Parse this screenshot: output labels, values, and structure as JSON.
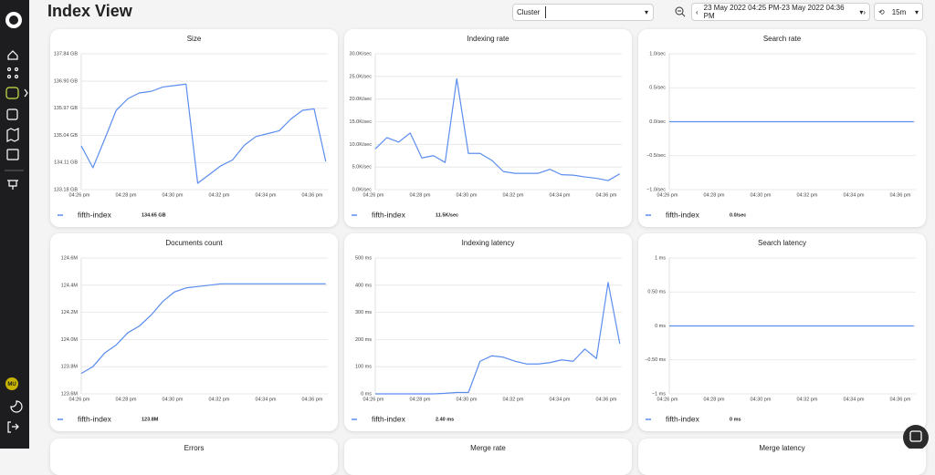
{
  "header": {
    "title": "Index View",
    "cluster_label": "Cluster",
    "time_range": "23 May 2022 04:25 PM-23 May 2022 04:36 PM",
    "refresh": "15m"
  },
  "sidebar": {
    "user": "MU"
  },
  "chart_data": [
    {
      "type": "line",
      "title": "Size",
      "categories": [
        "04:26 pm",
        null,
        null,
        null,
        "04:28 pm",
        null,
        null,
        null,
        "04:30 pm",
        null,
        null,
        null,
        "04:32 pm",
        null,
        null,
        null,
        "04:34 pm",
        null,
        null,
        null,
        "04:36 pm",
        null
      ],
      "series": [
        {
          "name": "fifth-index",
          "color": "#5b8def",
          "legend_value": "134.65 GB",
          "values": [
            134.68,
            133.93,
            134.9,
            135.9,
            136.3,
            136.5,
            136.55,
            136.7,
            136.75,
            136.8,
            133.4,
            133.7,
            134.0,
            134.2,
            134.7,
            135.0,
            135.1,
            135.2,
            135.6,
            135.9,
            135.95,
            134.15
          ]
        }
      ],
      "ylim": [
        133.18,
        137.84
      ],
      "yticks": [
        {
          "value": 133.18,
          "label": "133.18 GB"
        },
        {
          "value": 134.11,
          "label": "134.11 GB"
        },
        {
          "value": 135.04,
          "label": "135.04 GB"
        },
        {
          "value": 135.97,
          "label": "135.97 GB"
        },
        {
          "value": 136.9,
          "label": "136.90 GB"
        },
        {
          "value": 137.84,
          "label": "137.84 GB"
        }
      ],
      "grid": true
    },
    {
      "type": "line",
      "title": "Indexing rate",
      "categories": [
        "04:26 pm",
        null,
        null,
        null,
        "04:28 pm",
        null,
        null,
        null,
        "04:30 pm",
        null,
        null,
        null,
        "04:32 pm",
        null,
        null,
        null,
        "04:34 pm",
        null,
        null,
        null,
        "04:36 pm",
        null
      ],
      "series": [
        {
          "name": "fifth-index",
          "color": "#5b8def",
          "legend_value": "11.5K/sec",
          "values": [
            9,
            11.5,
            10.5,
            12.5,
            7,
            7.5,
            6,
            24.5,
            8,
            8,
            6.5,
            4,
            3.6,
            3.6,
            3.6,
            4.5,
            3.3,
            3.2,
            2.8,
            2.5,
            2.0,
            3.5
          ]
        }
      ],
      "ylim": [
        0,
        30
      ],
      "yticks": [
        {
          "value": 0,
          "label": "0.0K/sec"
        },
        {
          "value": 5,
          "label": "5.0K/sec"
        },
        {
          "value": 10,
          "label": "10.0K/sec"
        },
        {
          "value": 15,
          "label": "15.0K/sec"
        },
        {
          "value": 20,
          "label": "20.0K/sec"
        },
        {
          "value": 25,
          "label": "25.0K/sec"
        },
        {
          "value": 30,
          "label": "30.0K/sec"
        }
      ],
      "grid": true
    },
    {
      "type": "line",
      "title": "Search rate",
      "categories": [
        "04:26 pm",
        null,
        null,
        null,
        "04:28 pm",
        null,
        null,
        null,
        "04:30 pm",
        null,
        null,
        null,
        "04:32 pm",
        null,
        null,
        null,
        "04:34 pm",
        null,
        null,
        null,
        "04:36 pm",
        null
      ],
      "series": [
        {
          "name": "fifth-index",
          "color": "#5b8def",
          "legend_value": "0.0/sec",
          "values": [
            0,
            0,
            0,
            0,
            0,
            0,
            0,
            0,
            0,
            0,
            0,
            0,
            0,
            0,
            0,
            0,
            0,
            0,
            0,
            0,
            0,
            0
          ]
        }
      ],
      "ylim": [
        -1,
        1
      ],
      "yticks": [
        {
          "value": -1,
          "label": "−1.0/sec"
        },
        {
          "value": -0.5,
          "label": "−0.5/sec"
        },
        {
          "value": 0,
          "label": "0.0/sec"
        },
        {
          "value": 0.5,
          "label": "0.5/sec"
        },
        {
          "value": 1,
          "label": "1.0/sec"
        }
      ],
      "grid": true
    },
    {
      "type": "line",
      "title": "Documents count",
      "categories": [
        "04:26 pm",
        null,
        null,
        null,
        "04:28 pm",
        null,
        null,
        null,
        "04:30 pm",
        null,
        null,
        null,
        "04:32 pm",
        null,
        null,
        null,
        "04:34 pm",
        null,
        null,
        null,
        "04:36 pm",
        null
      ],
      "series": [
        {
          "name": "fifth-index",
          "color": "#5b8def",
          "legend_value": "123.8M",
          "values": [
            123.75,
            123.8,
            123.9,
            123.96,
            124.05,
            124.1,
            124.18,
            124.28,
            124.35,
            124.38,
            124.39,
            124.4,
            124.41,
            124.41,
            124.41,
            124.41,
            124.41,
            124.41,
            124.41,
            124.41,
            124.41,
            124.41
          ]
        }
      ],
      "ylim": [
        123.6,
        124.6
      ],
      "yticks": [
        {
          "value": 123.6,
          "label": "123.6M"
        },
        {
          "value": 123.8,
          "label": "123.8M"
        },
        {
          "value": 124.0,
          "label": "124.0M"
        },
        {
          "value": 124.2,
          "label": "124.2M"
        },
        {
          "value": 124.4,
          "label": "124.4M"
        },
        {
          "value": 124.6,
          "label": "124.6M"
        }
      ],
      "grid": true
    },
    {
      "type": "line",
      "title": "Indexing latency",
      "categories": [
        "04:26 pm",
        null,
        null,
        null,
        "04:28 pm",
        null,
        null,
        null,
        "04:30 pm",
        null,
        null,
        null,
        "04:32 pm",
        null,
        null,
        null,
        "04:34 pm",
        null,
        null,
        null,
        "04:36 pm",
        null
      ],
      "series": [
        {
          "name": "fifth-index",
          "color": "#5b8def",
          "legend_value": "2.40 ms",
          "values": [
            0,
            0,
            0,
            0,
            0,
            0,
            2,
            5,
            5,
            120,
            140,
            135,
            120,
            110,
            110,
            115,
            125,
            120,
            165,
            130,
            410,
            185
          ]
        }
      ],
      "ylim": [
        0,
        500
      ],
      "yticks": [
        {
          "value": 0,
          "label": "0 ms"
        },
        {
          "value": 100,
          "label": "100 ms"
        },
        {
          "value": 200,
          "label": "200 ms"
        },
        {
          "value": 300,
          "label": "300 ms"
        },
        {
          "value": 400,
          "label": "400 ms"
        },
        {
          "value": 500,
          "label": "500 ms"
        }
      ],
      "grid": true
    },
    {
      "type": "line",
      "title": "Search latency",
      "categories": [
        "04:26 pm",
        null,
        null,
        null,
        "04:28 pm",
        null,
        null,
        null,
        "04:30 pm",
        null,
        null,
        null,
        "04:32 pm",
        null,
        null,
        null,
        "04:34 pm",
        null,
        null,
        null,
        "04:36 pm",
        null
      ],
      "series": [
        {
          "name": "fifth-index",
          "color": "#5b8def",
          "legend_value": "0 ms",
          "values": [
            0,
            0,
            0,
            0,
            0,
            0,
            0,
            0,
            0,
            0,
            0,
            0,
            0,
            0,
            0,
            0,
            0,
            0,
            0,
            0,
            0,
            0
          ]
        }
      ],
      "ylim": [
        -1,
        1
      ],
      "yticks": [
        {
          "value": -1,
          "label": "−1 ms"
        },
        {
          "value": -0.5,
          "label": "−0.50 ms"
        },
        {
          "value": 0,
          "label": "0 ms"
        },
        {
          "value": 0.5,
          "label": "0.50 ms"
        },
        {
          "value": 1,
          "label": "1 ms"
        }
      ],
      "grid": true
    }
  ],
  "more_panels": [
    "Errors",
    "Merge rate",
    "Merge latency"
  ]
}
